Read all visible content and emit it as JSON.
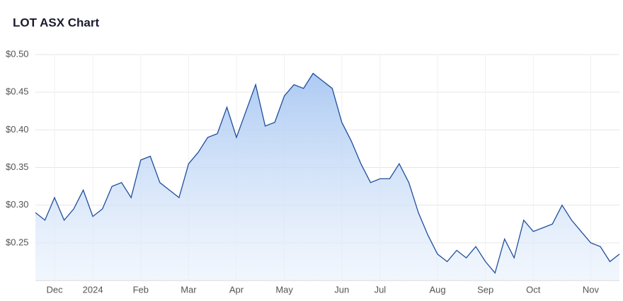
{
  "chart_data": {
    "type": "area",
    "title": "LOT ASX Chart",
    "categories": [
      null,
      null,
      "Dec",
      null,
      null,
      null,
      "2024",
      null,
      null,
      null,
      null,
      "Feb",
      null,
      null,
      null,
      null,
      "Mar",
      null,
      null,
      null,
      null,
      "Apr",
      null,
      null,
      null,
      null,
      "May",
      null,
      null,
      null,
      null,
      null,
      "Jun",
      null,
      null,
      null,
      "Jul",
      null,
      null,
      null,
      null,
      null,
      "Aug",
      null,
      null,
      null,
      null,
      "Sep",
      null,
      null,
      null,
      null,
      "Oct",
      null,
      null,
      null,
      null,
      null,
      "Nov",
      null,
      null,
      null
    ],
    "values": [
      0.29,
      0.28,
      0.31,
      0.28,
      0.295,
      0.32,
      0.285,
      0.295,
      0.325,
      0.33,
      0.31,
      0.36,
      0.365,
      0.33,
      0.32,
      0.31,
      0.355,
      0.37,
      0.39,
      0.395,
      0.43,
      0.39,
      0.425,
      0.46,
      0.405,
      0.41,
      0.445,
      0.46,
      0.455,
      0.475,
      0.465,
      0.455,
      0.41,
      0.385,
      0.355,
      0.33,
      0.335,
      0.335,
      0.355,
      0.33,
      0.29,
      0.26,
      0.235,
      0.225,
      0.24,
      0.23,
      0.245,
      0.225,
      0.21,
      0.255,
      0.23,
      0.28,
      0.265,
      0.27,
      0.275,
      0.3,
      0.28,
      0.265,
      0.25,
      0.245,
      0.225,
      0.235
    ],
    "color": "#1f4e9c",
    "ylim": [
      0.2,
      0.5
    ],
    "yticks": [
      {
        "value": 0.25,
        "label": "$0.25"
      },
      {
        "value": 0.3,
        "label": "$0.30"
      },
      {
        "value": 0.35,
        "label": "$0.35"
      },
      {
        "value": 0.4,
        "label": "$0.40"
      },
      {
        "value": 0.45,
        "label": "$0.45"
      },
      {
        "value": 0.5,
        "label": "$0.50"
      }
    ],
    "grid": true
  }
}
